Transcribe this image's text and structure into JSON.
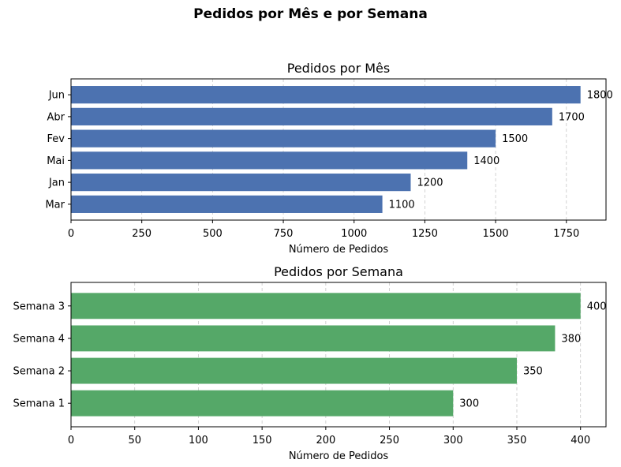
{
  "figure": {
    "title": "Pedidos por Mês e por Semana"
  },
  "chart_data": [
    {
      "type": "bar",
      "orientation": "horizontal",
      "title": "Pedidos por Mês",
      "xlabel": "Número de Pedidos",
      "ylabel": "",
      "categories": [
        "Mar",
        "Jan",
        "Mai",
        "Fev",
        "Abr",
        "Jun"
      ],
      "values": [
        1100,
        1200,
        1400,
        1500,
        1700,
        1800
      ],
      "data_labels": [
        "1100",
        "1200",
        "1400",
        "1500",
        "1700",
        "1800"
      ],
      "xlim": [
        0,
        1890
      ],
      "xticks": [
        0,
        250,
        500,
        750,
        1000,
        1250,
        1500,
        1750
      ],
      "grid": "vertical dashed",
      "color": "#4c72b0"
    },
    {
      "type": "bar",
      "orientation": "horizontal",
      "title": "Pedidos por Semana",
      "xlabel": "Número de Pedidos",
      "ylabel": "",
      "categories": [
        "Semana 1",
        "Semana 2",
        "Semana 4",
        "Semana 3"
      ],
      "values": [
        300,
        350,
        380,
        400
      ],
      "data_labels": [
        "300",
        "350",
        "380",
        "400"
      ],
      "xlim": [
        0,
        420
      ],
      "xticks": [
        0,
        50,
        100,
        150,
        200,
        250,
        300,
        350,
        400
      ],
      "grid": "vertical dashed",
      "color": "#55a868"
    }
  ]
}
